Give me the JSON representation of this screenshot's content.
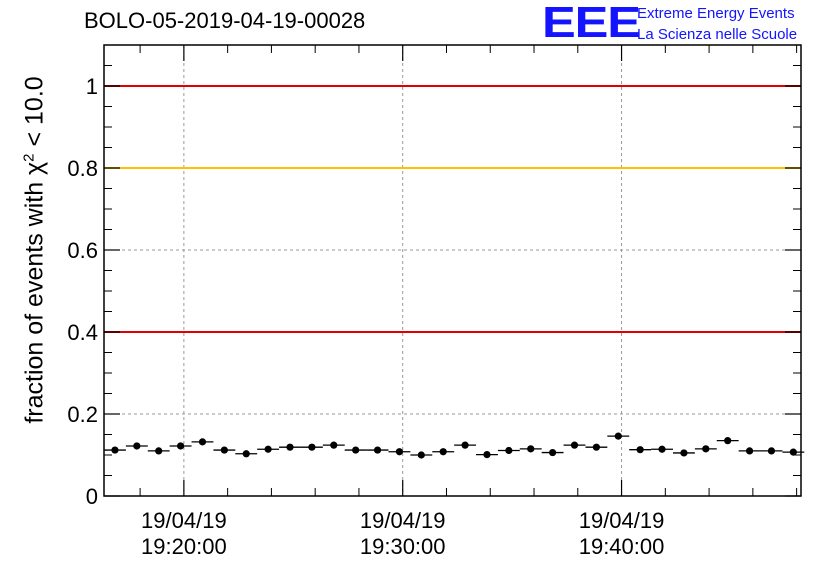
{
  "header": {
    "run_title": "BOLO-05-2019-04-19-00028"
  },
  "logo": {
    "mark": "EEE",
    "line1": "Extreme Energy Events",
    "line2": "La Scienza nelle Scuole",
    "color": "#1414ff"
  },
  "chart_data": {
    "type": "scatter",
    "title": "BOLO-05-2019-04-19-00028",
    "ylabel_prefix": "fraction of events with ",
    "ylabel_symbol": "χ",
    "ylabel_sup": "2",
    "ylabel_suffix": " < 10.0",
    "ylim": [
      0,
      1.1
    ],
    "yticks": [
      0,
      0.2,
      0.4,
      0.6,
      0.8,
      1
    ],
    "ytick_labels": [
      "0",
      "0.2",
      "0.4",
      "0.6",
      "0.8",
      "1"
    ],
    "xlim_minutes": [
      16.35,
      48.2
    ],
    "xtick_minutes": [
      20,
      30,
      40
    ],
    "xtick_labels": [
      {
        "date": "19/04/19",
        "time": "19:20:00"
      },
      {
        "date": "19/04/19",
        "time": "19:30:00"
      },
      {
        "date": "19/04/19",
        "time": "19:40:00"
      }
    ],
    "grid": true,
    "reference_lines": [
      {
        "y": 1.0,
        "color": "#e00000"
      },
      {
        "y": 0.8,
        "color": "#ffc000"
      },
      {
        "y": 0.4,
        "color": "#e00000"
      }
    ],
    "series": [
      {
        "marker_color": "#000000",
        "bin_width_minutes": 1,
        "x_minutes": [
          16.85,
          17.85,
          18.85,
          19.85,
          20.85,
          21.85,
          22.85,
          23.85,
          24.85,
          25.85,
          26.85,
          27.85,
          28.85,
          29.85,
          30.85,
          31.85,
          32.85,
          33.85,
          34.85,
          35.85,
          36.85,
          37.85,
          38.85,
          39.85,
          40.85,
          41.85,
          42.85,
          43.85,
          44.85,
          45.85,
          46.85,
          47.85
        ],
        "y": [
          0.112,
          0.122,
          0.11,
          0.122,
          0.132,
          0.112,
          0.103,
          0.114,
          0.119,
          0.119,
          0.124,
          0.112,
          0.112,
          0.108,
          0.1,
          0.108,
          0.124,
          0.101,
          0.111,
          0.115,
          0.106,
          0.124,
          0.119,
          0.146,
          0.113,
          0.114,
          0.105,
          0.115,
          0.135,
          0.11,
          0.11,
          0.107
        ]
      }
    ]
  }
}
